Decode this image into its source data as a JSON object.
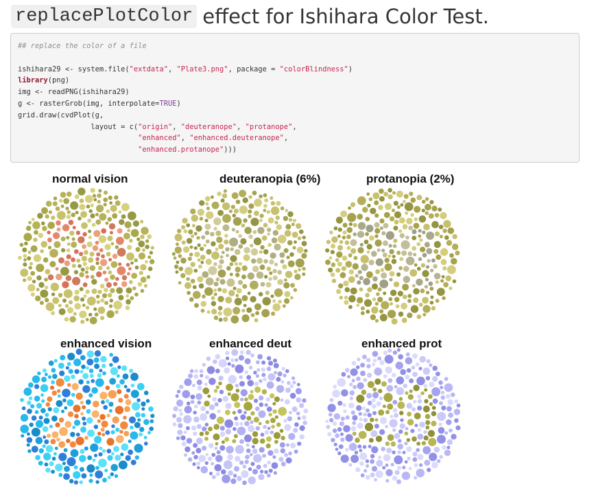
{
  "heading": {
    "code_text": "replacePlotColor",
    "rest_text": "effect for Ishihara Color Test."
  },
  "code": {
    "comment": "## replace the color of a file",
    "line1_a": "ishihara29 <- system.file(",
    "line1_s1": "\"extdata\"",
    "line1_b": ", ",
    "line1_s2": "\"Plate3.png\"",
    "line1_c": ", package = ",
    "line1_s3": "\"colorBlindness\"",
    "line1_d": ")",
    "line2_kw": "library",
    "line2_rest": "(png)",
    "line3": "img <- readPNG(ishihara29)",
    "line4_a": "g <- rasterGrob(img, interpolate=",
    "line4_const": "TRUE",
    "line4_b": ")",
    "line5": "grid.draw(cvdPlot(g,",
    "line6_a": "                 layout = c(",
    "line6_s1": "\"origin\"",
    "line6_b": ", ",
    "line6_s2": "\"deuteranope\"",
    "line6_c": ", ",
    "line6_s3": "\"protanope\"",
    "line6_d": ",",
    "line7_a": "                            ",
    "line7_s1": "\"enhanced\"",
    "line7_b": ", ",
    "line7_s2": "\"enhanced.deuteranope\"",
    "line7_c": ",",
    "line8_a": "                            ",
    "line8_s1": "\"enhanced.protanope\"",
    "line8_b": ")))"
  },
  "figure": {
    "panels": [
      {
        "title": "normal vision",
        "bg_colors": [
          "#c9c26c",
          "#b7b259",
          "#a9a84d",
          "#d6d07f",
          "#979a44"
        ],
        "fg_colors": [
          "#e3876b",
          "#d96f58",
          "#eaa07f",
          "#cf7a5e"
        ]
      },
      {
        "title": "deuteranopia (6%)",
        "bg_colors": [
          "#c6c070",
          "#b2ad5c",
          "#a4a250",
          "#d3cd80",
          "#949545"
        ],
        "fg_colors": [
          "#bdb98b",
          "#c8c38f",
          "#b0ad80",
          "#d1cc9b"
        ]
      },
      {
        "title": "protanopia (2%)",
        "bg_colors": [
          "#c7c06c",
          "#b4ae58",
          "#a6a24b",
          "#d4cd7e",
          "#959441"
        ],
        "fg_colors": [
          "#b5b493",
          "#a9a98a",
          "#c2bf9a",
          "#9fa085"
        ]
      },
      {
        "title": "enhanced vision",
        "bg_colors": [
          "#29b8ea",
          "#3ad0f5",
          "#1e9fd8",
          "#5de0f8",
          "#2f7fd9",
          "#1b8cc9"
        ],
        "fg_colors": [
          "#f08a3e",
          "#f7a052",
          "#e8742c",
          "#f9b36a"
        ]
      },
      {
        "title": "enhanced deut",
        "bg_colors": [
          "#b3b2f2",
          "#9f9deb",
          "#c6c5f7",
          "#8c8ae2",
          "#d6d5fb"
        ],
        "fg_colors": [
          "#b4b54e",
          "#a5a640",
          "#c3c45d",
          "#999a3a"
        ]
      },
      {
        "title": "enhanced prot",
        "bg_colors": [
          "#b9b8f5",
          "#a5a3ee",
          "#cbcaf8",
          "#9291e6",
          "#dadafc"
        ],
        "fg_colors": [
          "#a8a849",
          "#9c9c3e",
          "#b7b757",
          "#8f9036"
        ]
      }
    ]
  }
}
